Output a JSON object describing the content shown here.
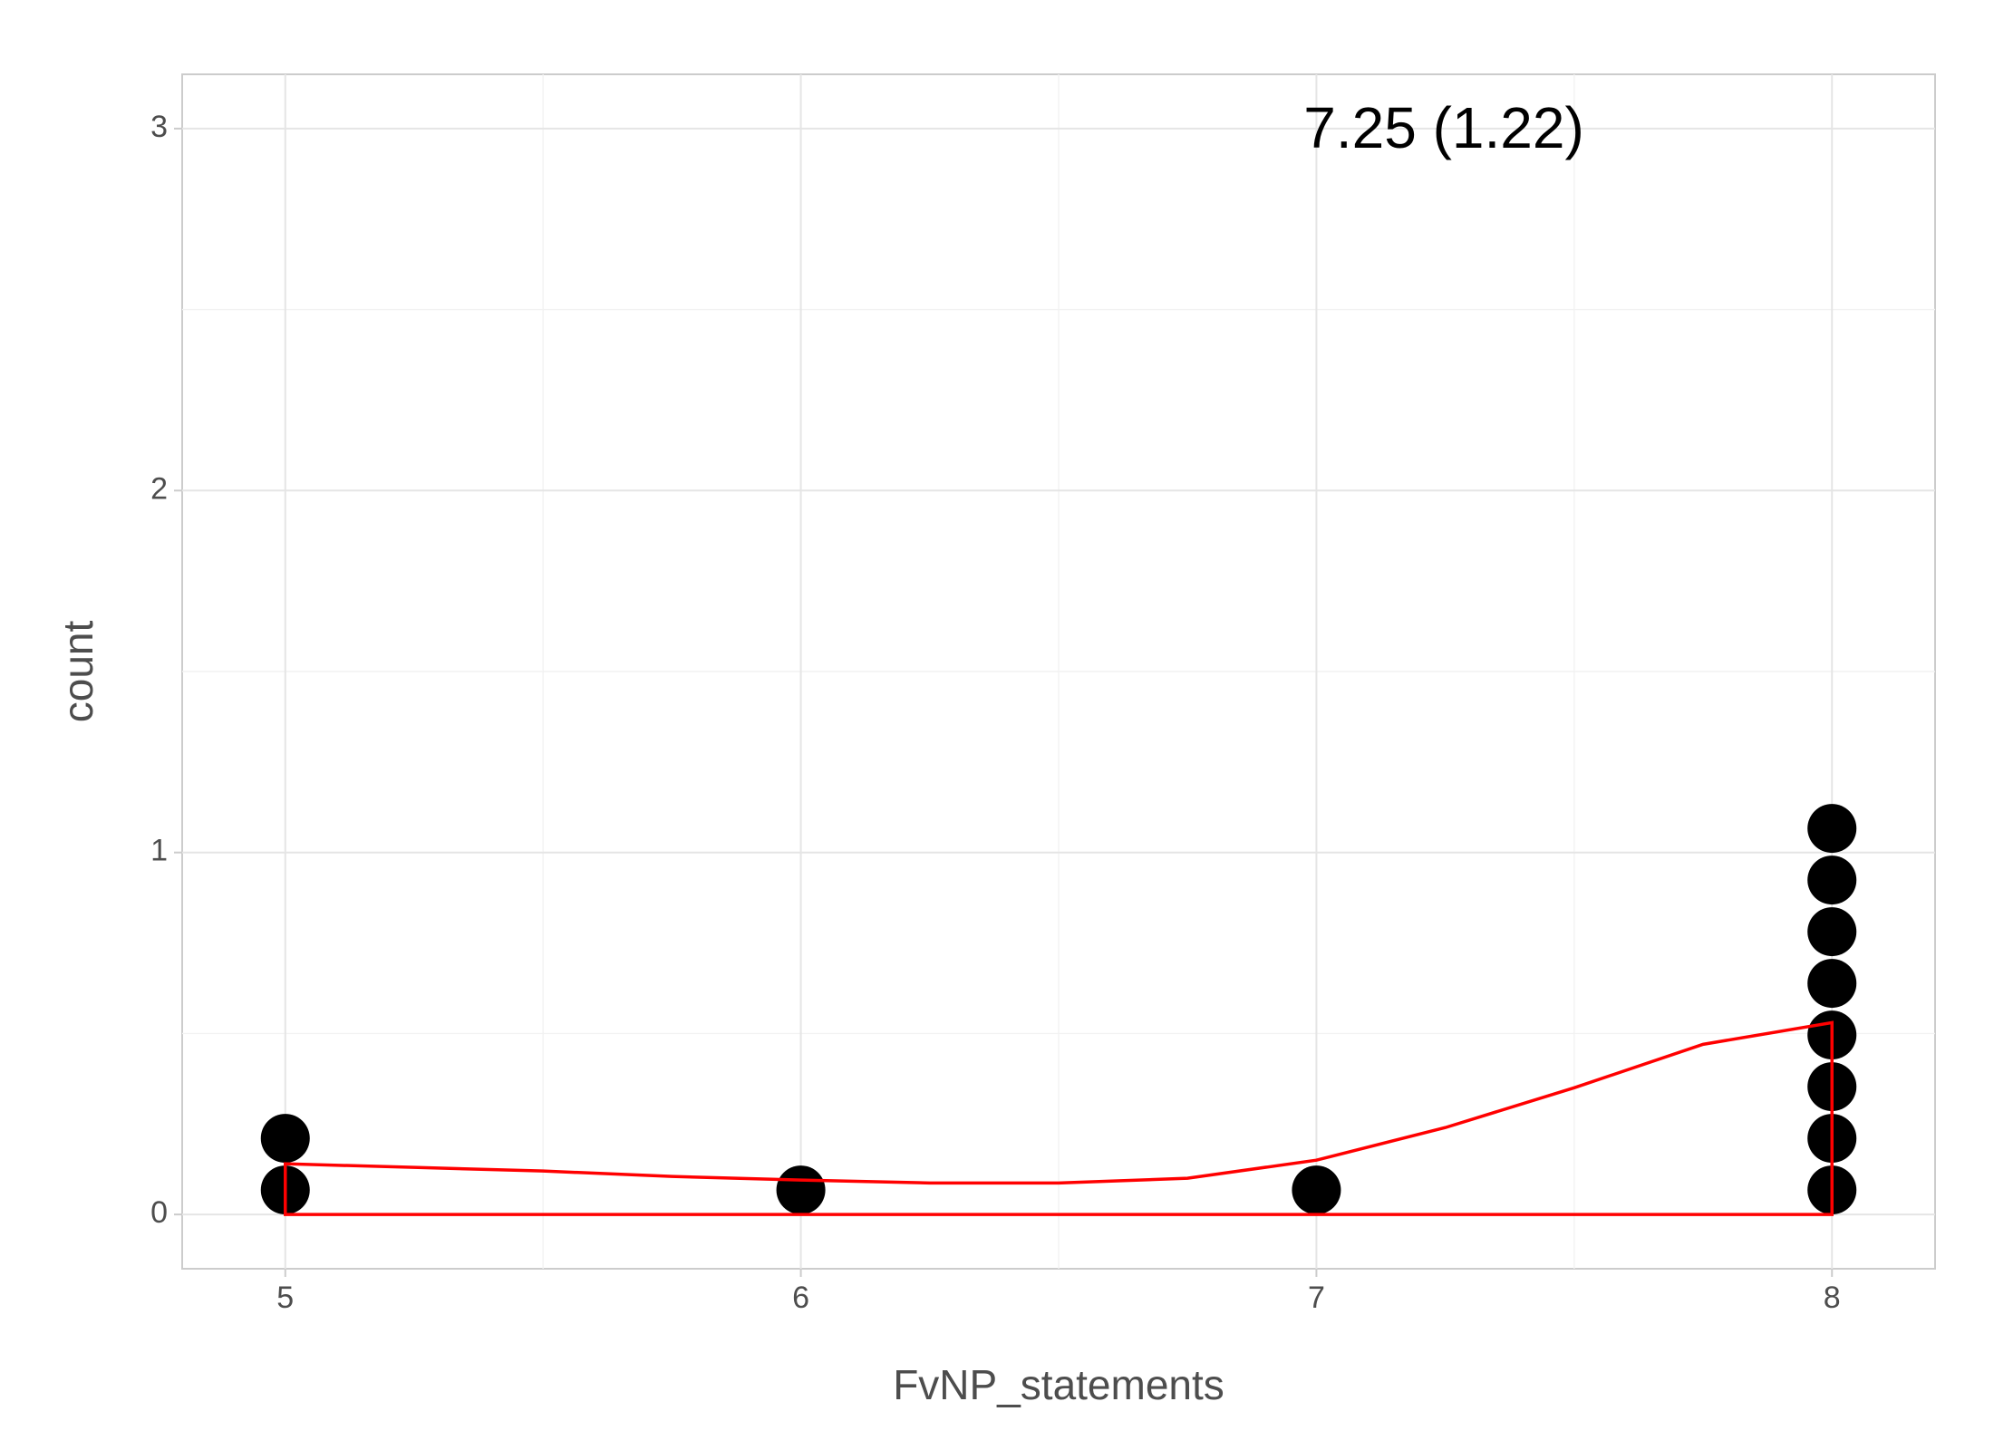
{
  "chart_data": {
    "type": "dotplot",
    "annotation": "7.25 (1.22)",
    "x_label": "FvNP_statements",
    "y_label": "count",
    "values": [
      5,
      5,
      6,
      7,
      8,
      8,
      8,
      8,
      8,
      8,
      8,
      8
    ],
    "color": "#000000",
    "density": {
      "color": "#ff0000",
      "x": [
        5,
        5.25,
        5.5,
        5.75,
        6,
        6.25,
        6.5,
        6.75,
        7,
        7.25,
        7.5,
        7.75,
        8
      ],
      "y": [
        0.14,
        0.13,
        0.12,
        0.105,
        0.095,
        0.087,
        0.087,
        0.1,
        0.15,
        0.24,
        0.35,
        0.47,
        0.53
      ]
    },
    "xlim": [
      4.8,
      8.2
    ],
    "xticks": [
      5,
      6,
      7,
      8
    ],
    "ylim": [
      -0.15,
      3.15
    ],
    "yticks": [
      0,
      1,
      2,
      3
    ],
    "grid": true
  }
}
